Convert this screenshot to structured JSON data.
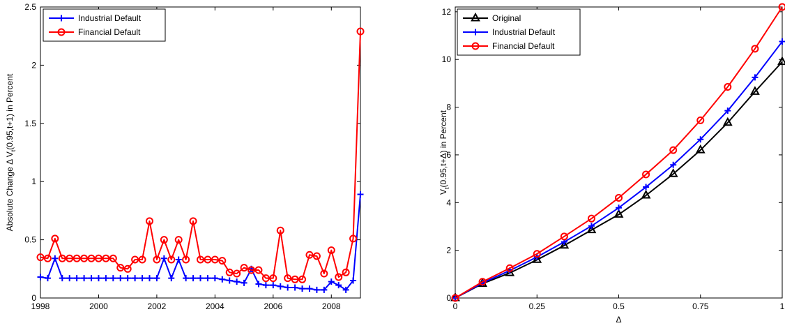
{
  "chart_data": [
    {
      "type": "line",
      "xlabel": "",
      "ylabel": "Absolute Change Δ V_t(0.95,t+1) in Percent",
      "xlim": [
        1998,
        2009
      ],
      "ylim": [
        0,
        2.5
      ],
      "xticks": [
        1998,
        2000,
        2002,
        2004,
        2006,
        2008
      ],
      "xtick_labels": [
        "1998",
        "2000",
        "2002",
        "2004",
        "2006",
        "2008"
      ],
      "yticks": [
        0,
        0.5,
        1,
        1.5,
        2,
        2.5
      ],
      "ytick_labels": [
        "0",
        "0.5",
        "1",
        "1.5",
        "2",
        "2.5"
      ],
      "legend_position": "top-left",
      "grid": false,
      "x": [
        1998.0,
        1998.25,
        1998.5,
        1998.75,
        1999.0,
        1999.25,
        1999.5,
        1999.75,
        2000.0,
        2000.25,
        2000.5,
        2000.75,
        2001.0,
        2001.25,
        2001.5,
        2001.75,
        2002.0,
        2002.25,
        2002.5,
        2002.75,
        2003.0,
        2003.25,
        2003.5,
        2003.75,
        2004.0,
        2004.25,
        2004.5,
        2004.75,
        2005.0,
        2005.25,
        2005.5,
        2005.75,
        2006.0,
        2006.25,
        2006.5,
        2006.75,
        2007.0,
        2007.25,
        2007.5,
        2007.75,
        2008.0,
        2008.25,
        2008.5,
        2008.75,
        2009.0
      ],
      "series": [
        {
          "name": "Industrial Default",
          "color": "#0000ff",
          "marker": "plus",
          "values": [
            0.18,
            0.17,
            0.34,
            0.17,
            0.17,
            0.17,
            0.17,
            0.17,
            0.17,
            0.17,
            0.17,
            0.17,
            0.17,
            0.17,
            0.17,
            0.17,
            0.17,
            0.34,
            0.17,
            0.33,
            0.17,
            0.17,
            0.17,
            0.17,
            0.17,
            0.16,
            0.15,
            0.14,
            0.13,
            0.25,
            0.12,
            0.11,
            0.11,
            0.1,
            0.09,
            0.09,
            0.08,
            0.08,
            0.07,
            0.07,
            0.14,
            0.11,
            0.07,
            0.15,
            0.89
          ]
        },
        {
          "name": "Financial Default",
          "color": "#ff0000",
          "marker": "circle",
          "values": [
            0.35,
            0.34,
            0.51,
            0.34,
            0.34,
            0.34,
            0.34,
            0.34,
            0.34,
            0.34,
            0.34,
            0.26,
            0.25,
            0.33,
            0.33,
            0.66,
            0.33,
            0.5,
            0.33,
            0.5,
            0.33,
            0.66,
            0.33,
            0.33,
            0.33,
            0.32,
            0.22,
            0.21,
            0.26,
            0.24,
            0.24,
            0.17,
            0.17,
            0.58,
            0.17,
            0.16,
            0.16,
            0.37,
            0.36,
            0.21,
            0.41,
            0.18,
            0.22,
            0.51,
            2.29
          ]
        }
      ]
    },
    {
      "type": "line",
      "xlabel": "Δ",
      "ylabel": "V_t(0.95,t+Δ) in Percent",
      "xlim": [
        0,
        1
      ],
      "ylim": [
        0,
        12.2
      ],
      "xticks": [
        0,
        0.25,
        0.5,
        0.75,
        1
      ],
      "xtick_labels": [
        "0",
        "0.25",
        "0.5",
        "0.75",
        "1"
      ],
      "yticks": [
        0,
        2,
        4,
        6,
        8,
        10,
        12
      ],
      "ytick_labels": [
        "0",
        "2",
        "4",
        "6",
        "8",
        "10",
        "12"
      ],
      "legend_position": "top-left",
      "grid": false,
      "x": [
        0,
        0.0833,
        0.1667,
        0.25,
        0.3333,
        0.4167,
        0.5,
        0.5833,
        0.6667,
        0.75,
        0.8333,
        0.9167,
        1.0
      ],
      "series": [
        {
          "name": "Original",
          "color": "#000000",
          "marker": "triangle",
          "values": [
            0.0,
            0.6,
            1.05,
            1.6,
            2.2,
            2.85,
            3.5,
            4.3,
            5.2,
            6.2,
            7.35,
            8.65,
            9.9
          ]
        },
        {
          "name": "Industrial Default",
          "color": "#0000ff",
          "marker": "plus",
          "values": [
            0.0,
            0.63,
            1.15,
            1.72,
            2.35,
            3.02,
            3.78,
            4.65,
            5.58,
            6.65,
            7.85,
            9.25,
            10.75
          ]
        },
        {
          "name": "Financial Default",
          "color": "#ff0000",
          "marker": "circle",
          "values": [
            0.0,
            0.68,
            1.25,
            1.85,
            2.58,
            3.33,
            4.2,
            5.18,
            6.2,
            7.45,
            8.85,
            10.45,
            12.2
          ]
        }
      ]
    }
  ]
}
